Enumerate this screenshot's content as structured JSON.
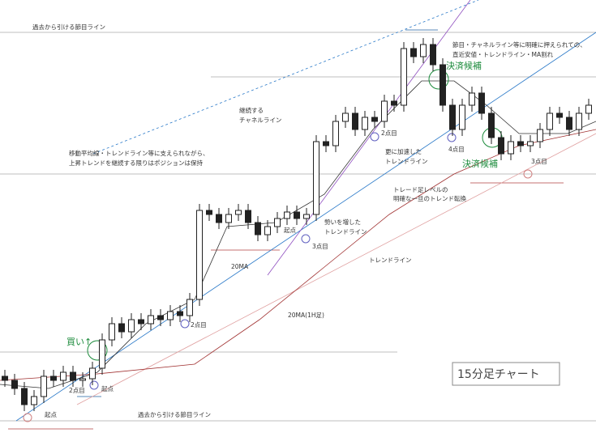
{
  "chart_data": {
    "type": "candlestick",
    "open": [
      75,
      70,
      60,
      40,
      50,
      75,
      70,
      80,
      70,
      72,
      85,
      120,
      140,
      130,
      145,
      140,
      150,
      145,
      155,
      150,
      170,
      280,
      275,
      265,
      275,
      280,
      265,
      250,
      260,
      270,
      278,
      270,
      275,
      365,
      360,
      390,
      400,
      380,
      395,
      390,
      415,
      410,
      480,
      470,
      485,
      460,
      410,
      380,
      410,
      425,
      400,
      370,
      350,
      365,
      360,
      365,
      380,
      400,
      395,
      380,
      400
    ],
    "high": [
      83,
      78,
      68,
      58,
      83,
      83,
      88,
      88,
      80,
      93,
      128,
      148,
      148,
      153,
      153,
      158,
      158,
      163,
      163,
      178,
      288,
      288,
      283,
      283,
      288,
      288,
      273,
      268,
      278,
      286,
      286,
      283,
      373,
      373,
      398,
      408,
      408,
      403,
      403,
      423,
      423,
      488,
      488,
      493,
      493,
      468,
      418,
      418,
      433,
      433,
      408,
      378,
      373,
      373,
      373,
      388,
      408,
      408,
      403,
      408,
      418
    ],
    "low": [
      62,
      52,
      32,
      32,
      42,
      62,
      62,
      62,
      62,
      64,
      77,
      112,
      122,
      122,
      132,
      132,
      137,
      137,
      142,
      142,
      162,
      267,
      257,
      257,
      267,
      257,
      242,
      242,
      252,
      262,
      262,
      262,
      267,
      352,
      352,
      382,
      372,
      372,
      382,
      382,
      402,
      402,
      462,
      462,
      452,
      402,
      372,
      372,
      402,
      392,
      362,
      342,
      342,
      352,
      352,
      357,
      372,
      387,
      372,
      372,
      392
    ],
    "close": [
      70,
      60,
      40,
      50,
      75,
      70,
      80,
      70,
      72,
      85,
      120,
      140,
      130,
      145,
      140,
      150,
      145,
      155,
      150,
      170,
      280,
      275,
      265,
      275,
      280,
      265,
      250,
      260,
      270,
      278,
      270,
      275,
      365,
      360,
      390,
      400,
      380,
      395,
      390,
      415,
      410,
      480,
      470,
      485,
      460,
      410,
      380,
      410,
      425,
      400,
      370,
      350,
      365,
      360,
      365,
      380,
      400,
      395,
      380,
      400,
      410
    ],
    "ylim": [
      0,
      540
    ],
    "annotations": [
      "過去から引ける節目ライン",
      "節目・チャネルライン等に明確に押えられての、",
      "直近安値・トレンドライン・MA割れ",
      "決済候補",
      "継続する",
      "チャネルライン",
      "移動平均線・トレンドライン等に支えられながら、",
      "上昇トレンドを継続する限りはポジションは保持",
      "更に加速した",
      "トレンドライン",
      "2点目",
      "4点目",
      "3点目",
      "決済候補",
      "トレード足レベルの",
      "明確な一旦のトレンド転換",
      "勢いを増した",
      "トレンドライン",
      "起点",
      "3点目",
      "20MA",
      "トレンドライン",
      "20MA(1H足)",
      "2点目",
      "買い↑",
      "15分足チャート",
      "2点目",
      "起点",
      "起点",
      "過去から引ける節目ライン"
    ]
  }
}
